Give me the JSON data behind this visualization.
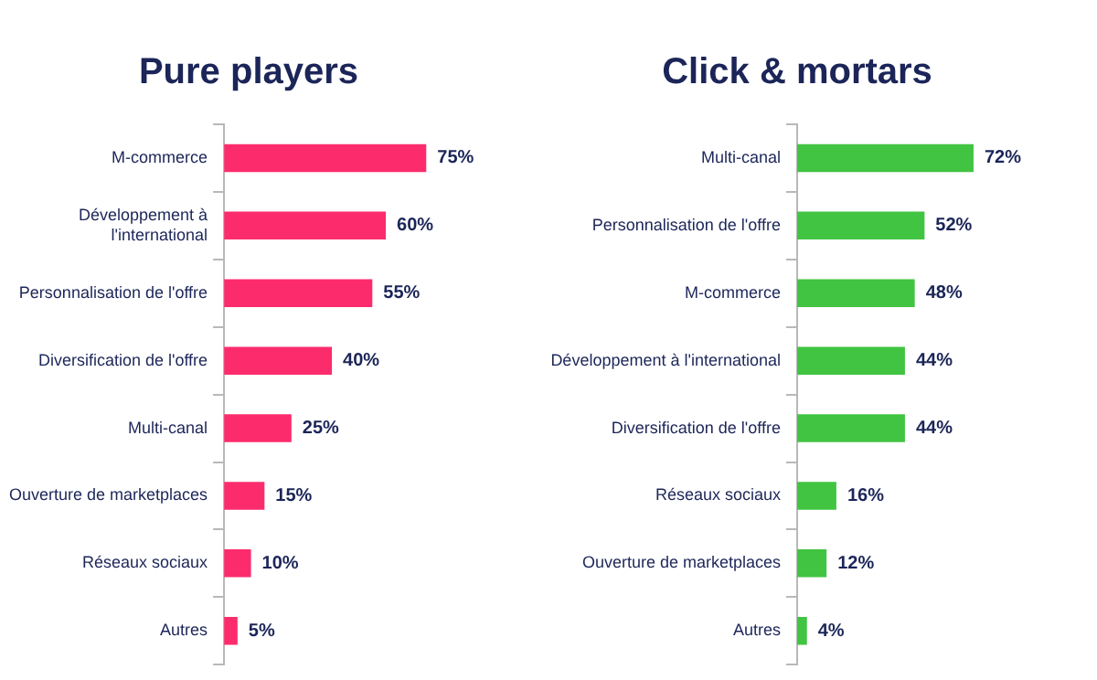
{
  "chart_data": [
    {
      "type": "bar",
      "orientation": "horizontal",
      "title": "Pure players",
      "categories": [
        "M-commerce",
        "Développement à\nl'international",
        "Personnalisation de l'offre",
        "Diversification de l'offre",
        "Multi-canal",
        "Ouverture de marketplaces",
        "Réseaux sociaux",
        "Autres"
      ],
      "values": [
        75,
        60,
        55,
        40,
        25,
        15,
        10,
        5
      ],
      "value_labels": [
        "75%",
        "60%",
        "55%",
        "40%",
        "25%",
        "15%",
        "10%",
        "5%"
      ],
      "color": "#fc2c6c",
      "legend": false
    },
    {
      "type": "bar",
      "orientation": "horizontal",
      "title": "Click & mortars",
      "categories": [
        "Multi-canal",
        "Personnalisation de l'offre",
        "M-commerce",
        "Développement à l'international",
        "Diversification de l'offre",
        "Réseaux sociaux",
        "Ouverture de marketplaces",
        "Autres"
      ],
      "values": [
        72,
        52,
        48,
        44,
        44,
        16,
        12,
        4
      ],
      "value_labels": [
        "72%",
        "52%",
        "48%",
        "44%",
        "44%",
        "16%",
        "12%",
        "4%"
      ],
      "color": "#41c441",
      "legend": false
    }
  ]
}
